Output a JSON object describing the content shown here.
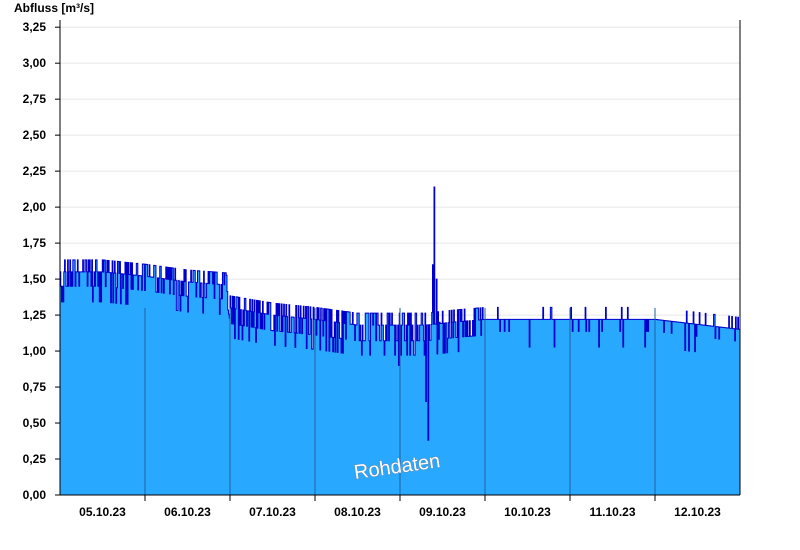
{
  "chart_data": {
    "type": "area",
    "ylabel": "Abfluss [m³/s]",
    "xlabel": "",
    "watermark": "Rohdaten",
    "ylim": [
      0,
      3.3
    ],
    "yticks": [
      0,
      0.25,
      0.5,
      0.75,
      1.0,
      1.25,
      1.5,
      1.75,
      2.0,
      2.25,
      2.5,
      2.75,
      3.0,
      3.25
    ],
    "ytick_labels": [
      "0,00",
      "0,25",
      "0,50",
      "0,75",
      "1,00",
      "1,25",
      "1,50",
      "1,75",
      "2,00",
      "2,25",
      "2,50",
      "2,75",
      "3,00",
      "3,25"
    ],
    "xlim": [
      4.0,
      12.0
    ],
    "xtick_labels": [
      "05.10.23",
      "06.10.23",
      "07.10.23",
      "08.10.23",
      "09.10.23",
      "10.10.23",
      "11.10.23",
      "12.10.23"
    ],
    "xtick_positions": [
      4.5,
      5.5,
      6.5,
      7.5,
      8.5,
      9.5,
      10.5,
      11.5
    ],
    "day_lines": [
      5,
      6,
      7,
      8,
      9,
      10,
      11
    ],
    "grid": true,
    "colors": {
      "fill": "#29a8ff",
      "line": "#0000cc",
      "grid": "#e6e6e6",
      "day_line": "#1f5f9f"
    },
    "series": [
      {
        "base": [
          [
            4.0,
            1.55
          ],
          [
            4.5,
            1.55
          ],
          [
            5.0,
            1.52
          ],
          [
            5.5,
            1.48
          ],
          [
            5.95,
            1.46
          ],
          [
            6.0,
            1.3
          ],
          [
            6.5,
            1.25
          ],
          [
            7.0,
            1.22
          ],
          [
            7.5,
            1.18
          ],
          [
            8.0,
            1.18
          ],
          [
            8.3,
            1.18
          ],
          [
            8.6,
            1.2
          ],
          [
            9.0,
            1.22
          ],
          [
            10.0,
            1.22
          ],
          [
            11.0,
            1.22
          ],
          [
            12.0,
            1.15
          ]
        ],
        "events": [
          [
            7.98,
            0.9
          ],
          [
            8.3,
            0.65
          ],
          [
            8.33,
            0.38
          ],
          [
            8.38,
            1.6
          ],
          [
            8.4,
            2.14
          ],
          [
            8.43,
            1.5
          ],
          [
            8.46,
            1.2
          ]
        ]
      }
    ]
  }
}
